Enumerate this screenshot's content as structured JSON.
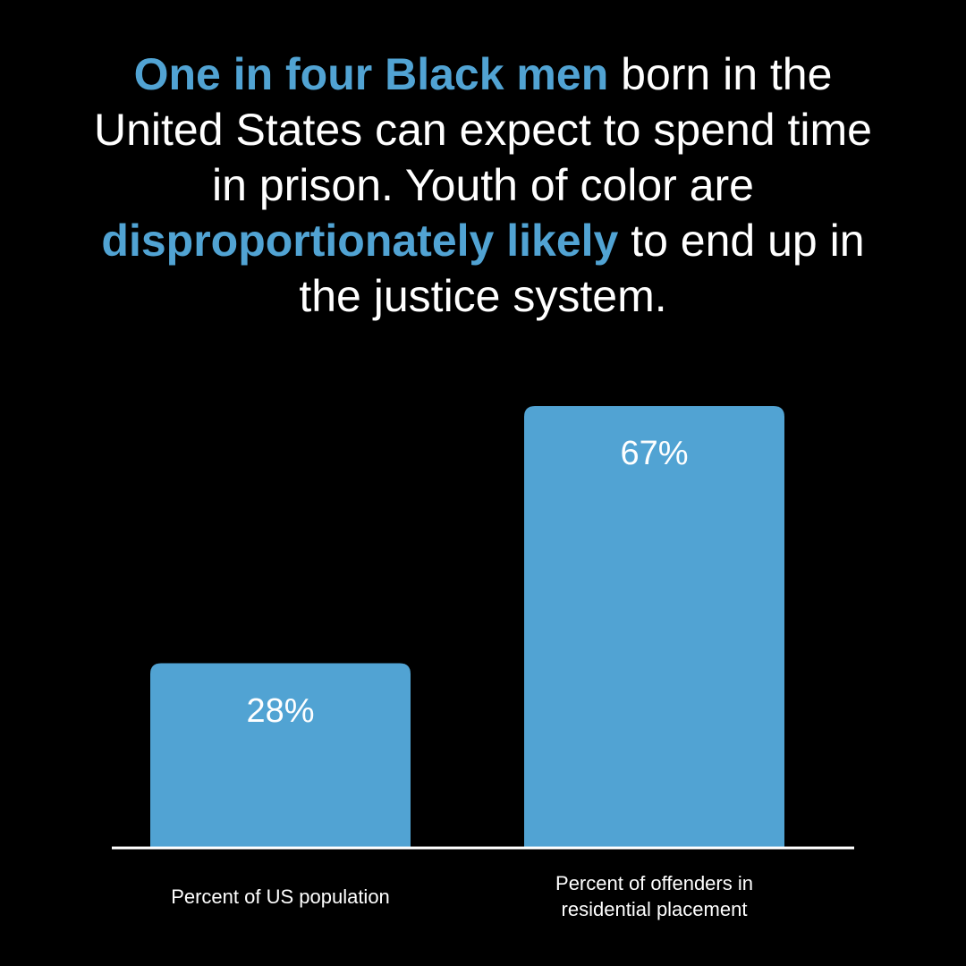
{
  "chart_data": {
    "type": "bar",
    "title": [
      {
        "text": "One in four Black men",
        "color": "#51a3d3",
        "bold": true
      },
      {
        "text": " born in the United States can expect to spend time in prison. Youth of color are ",
        "color": "#ffffff",
        "bold": false
      },
      {
        "text": "disproportionately likely",
        "color": "#51a3d3",
        "bold": true
      },
      {
        "text": " to end up in the justice system.",
        "color": "#ffffff",
        "bold": false
      }
    ],
    "categories": [
      "Percent of US population",
      "Percent of offenders in residential placement"
    ],
    "values": [
      28,
      67
    ],
    "value_labels": [
      "28%",
      "67%"
    ],
    "color": "#51a3d3"
  }
}
